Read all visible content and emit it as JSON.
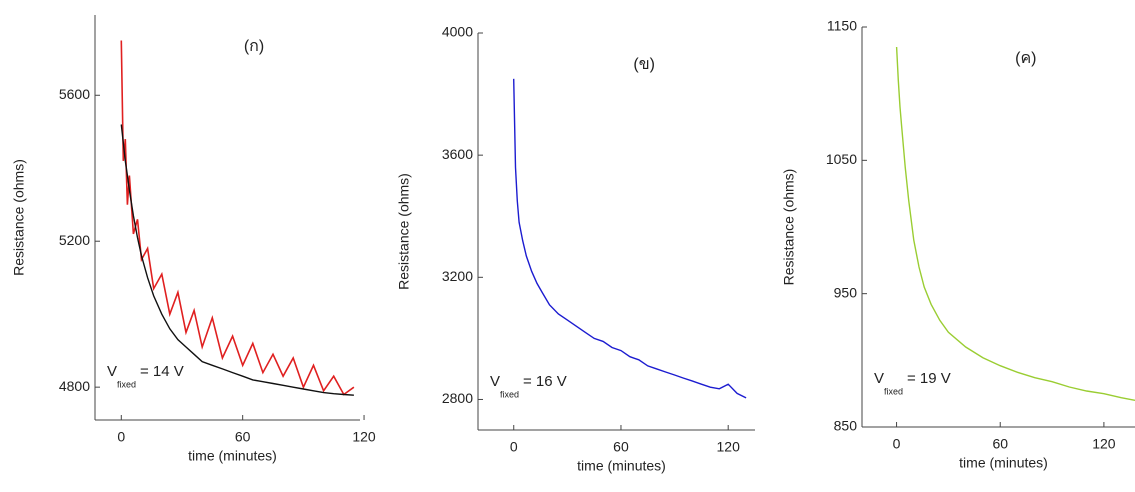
{
  "chart_data": [
    {
      "type": "line",
      "annotation": "(ก)",
      "vlabel": {
        "main": "V",
        "sub": "fixed",
        "rest": "= 14 V"
      },
      "xlabel": "time (minutes)",
      "ylabel": "Resistance (ohms)",
      "x": [
        0,
        1,
        2,
        3,
        4,
        6,
        8,
        10,
        13,
        16,
        20,
        24,
        28,
        32,
        36,
        40,
        45,
        50,
        55,
        60,
        65,
        70,
        75,
        80,
        85,
        90,
        95,
        100,
        105,
        110,
        115
      ],
      "series": [
        {
          "name": null,
          "color": "#e02020",
          "values": [
            5750,
            5420,
            5480,
            5300,
            5380,
            5220,
            5260,
            5150,
            5180,
            5070,
            5110,
            5000,
            5060,
            4950,
            5010,
            4910,
            4990,
            4880,
            4940,
            4860,
            4920,
            4840,
            4890,
            4830,
            4880,
            4800,
            4860,
            4790,
            4830,
            4780,
            4800
          ]
        },
        {
          "name": null,
          "color": "#111111",
          "values": [
            5520,
            5470,
            5420,
            5380,
            5340,
            5270,
            5210,
            5160,
            5100,
            5050,
            5000,
            4960,
            4930,
            4910,
            4890,
            4870,
            4860,
            4850,
            4840,
            4830,
            4820,
            4815,
            4810,
            4805,
            4800,
            4795,
            4790,
            4785,
            4782,
            4780,
            4778
          ]
        }
      ],
      "xlim": [
        -13,
        118
      ],
      "ylim": [
        4710,
        5820
      ],
      "xticks": [
        0,
        60,
        120
      ],
      "yticks": [
        4800,
        5200,
        5600
      ]
    },
    {
      "type": "line",
      "annotation": "(ข)",
      "vlabel": {
        "main": "V",
        "sub": "fixed",
        "rest": "= 16 V"
      },
      "xlabel": "time (minutes)",
      "ylabel": "Resistance (ohms)",
      "x": [
        0,
        1,
        2,
        3,
        5,
        7,
        10,
        13,
        16,
        20,
        25,
        30,
        35,
        40,
        45,
        50,
        55,
        60,
        65,
        70,
        75,
        80,
        85,
        90,
        95,
        100,
        105,
        110,
        115,
        120,
        125,
        130
      ],
      "series": [
        {
          "name": null,
          "color": "#1c1cd0",
          "values": [
            3850,
            3560,
            3450,
            3380,
            3320,
            3270,
            3220,
            3180,
            3150,
            3110,
            3080,
            3060,
            3040,
            3020,
            3000,
            2990,
            2970,
            2960,
            2940,
            2930,
            2910,
            2900,
            2890,
            2880,
            2870,
            2860,
            2850,
            2840,
            2835,
            2850,
            2820,
            2805
          ]
        }
      ],
      "xlim": [
        -20,
        135
      ],
      "ylim": [
        2700,
        4000
      ],
      "xticks": [
        0,
        60,
        120
      ],
      "yticks": [
        2800,
        3200,
        3600,
        4000
      ]
    },
    {
      "type": "line",
      "annotation": "(ค)",
      "vlabel": {
        "main": "V",
        "sub": "fixed",
        "rest": "= 19 V"
      },
      "xlabel": "time (minutes)",
      "ylabel": "Resistance (ohms)",
      "x": [
        0,
        1,
        2,
        3,
        5,
        7,
        10,
        13,
        16,
        20,
        25,
        30,
        40,
        50,
        60,
        70,
        80,
        90,
        100,
        110,
        120,
        130,
        138
      ],
      "series": [
        {
          "name": null,
          "color": "#9acd32",
          "values": [
            1135,
            1110,
            1090,
            1075,
            1045,
            1020,
            990,
            970,
            955,
            942,
            930,
            921,
            910,
            902,
            896,
            891,
            887,
            884,
            880,
            877,
            875,
            872,
            870
          ]
        }
      ],
      "xlim": [
        -20,
        138
      ],
      "ylim": [
        850,
        1150
      ],
      "xticks": [
        0,
        60,
        120
      ],
      "yticks": [
        850,
        950,
        1050,
        1150
      ]
    }
  ]
}
